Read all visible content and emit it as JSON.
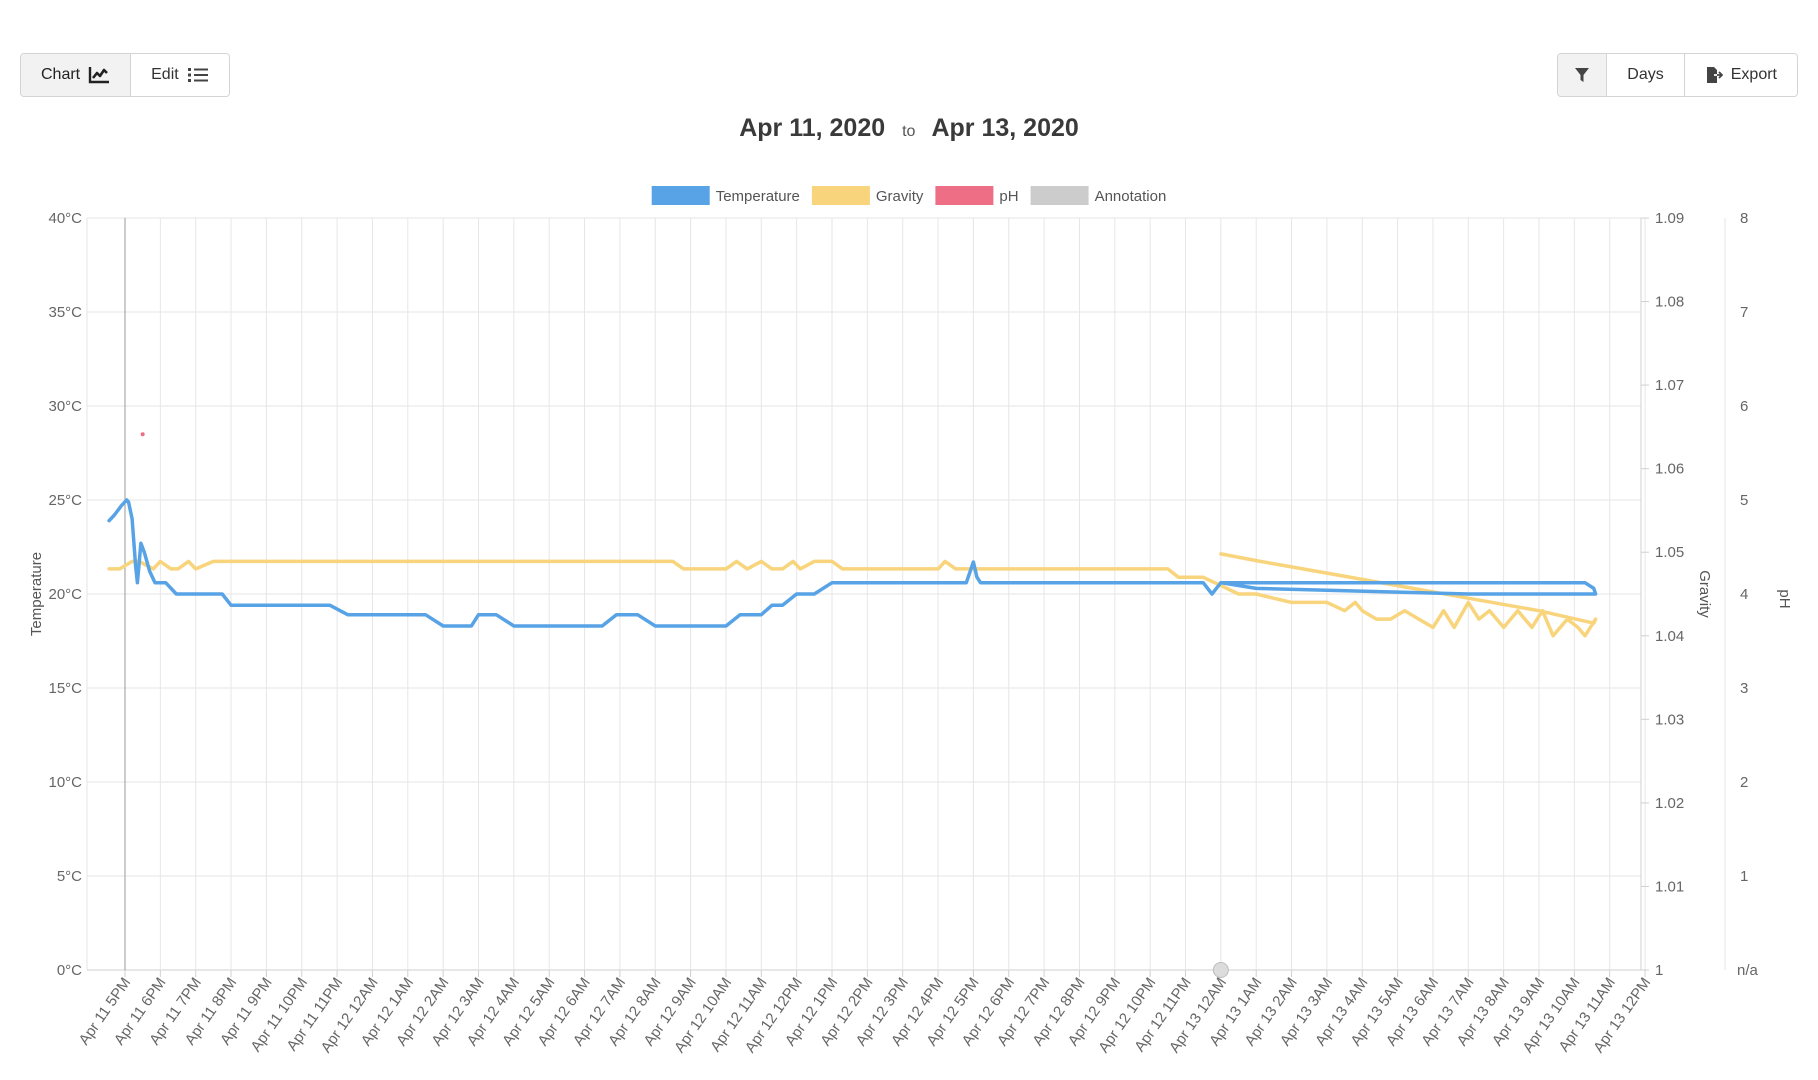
{
  "toolbar": {
    "chart_label": "Chart",
    "edit_label": "Edit",
    "days_label": "Days",
    "export_label": "Export",
    "icons": [
      "chart-line-icon",
      "list-icon",
      "filter-icon",
      "export-file-icon"
    ]
  },
  "date_range": {
    "start": "Apr 11, 2020",
    "to_label": "to",
    "end": "Apr 13, 2020"
  },
  "chart_data": {
    "type": "line",
    "legend": {
      "placement": "top-center",
      "entries": [
        {
          "name": "Temperature",
          "color": "#57a3e5"
        },
        {
          "name": "Gravity",
          "color": "#f8d47c"
        },
        {
          "name": "pH",
          "color": "#ee6e85"
        },
        {
          "name": "Annotation",
          "color": "#cccccc"
        }
      ]
    },
    "x_ticks": [
      "Apr 11 5PM",
      "Apr 11 6PM",
      "Apr 11 7PM",
      "Apr 11 8PM",
      "Apr 11 9PM",
      "Apr 11 10PM",
      "Apr 11 11PM",
      "Apr 12 12AM",
      "Apr 12 1AM",
      "Apr 12 2AM",
      "Apr 12 3AM",
      "Apr 12 4AM",
      "Apr 12 5AM",
      "Apr 12 6AM",
      "Apr 12 7AM",
      "Apr 12 8AM",
      "Apr 12 9AM",
      "Apr 12 10AM",
      "Apr 12 11AM",
      "Apr 12 12PM",
      "Apr 12 1PM",
      "Apr 12 2PM",
      "Apr 12 3PM",
      "Apr 12 4PM",
      "Apr 12 5PM",
      "Apr 12 6PM",
      "Apr 12 7PM",
      "Apr 12 8PM",
      "Apr 12 9PM",
      "Apr 12 10PM",
      "Apr 12 11PM",
      "Apr 13 12AM",
      "Apr 13 1AM",
      "Apr 13 2AM",
      "Apr 13 3AM",
      "Apr 13 4AM",
      "Apr 13 5AM",
      "Apr 13 6AM",
      "Apr 13 7AM",
      "Apr 13 8AM",
      "Apr 13 9AM",
      "Apr 13 10AM",
      "Apr 13 11AM",
      "Apr 13 12PM"
    ],
    "y_left": {
      "label": "Temperature",
      "ticks": [
        "0°C",
        "5°C",
        "10°C",
        "15°C",
        "20°C",
        "25°C",
        "30°C",
        "35°C",
        "40°C"
      ],
      "range": [
        0,
        40
      ]
    },
    "y_right_gravity": {
      "label": "Gravity",
      "ticks": [
        "1",
        "1.01",
        "1.02",
        "1.03",
        "1.04",
        "1.05",
        "1.06",
        "1.07",
        "1.08",
        "1.09"
      ],
      "range": [
        1,
        1.09
      ]
    },
    "y_right_ph": {
      "label": "pH",
      "ticks": [
        "n/a",
        "1",
        "2",
        "3",
        "4",
        "5",
        "6",
        "7",
        "8"
      ],
      "range": [
        0,
        8
      ]
    },
    "grid": true,
    "series": [
      {
        "name": "Temperature",
        "color": "#57a3e5",
        "x": [
          -0.45,
          -0.3,
          -0.1,
          0.05,
          0.1,
          0.2,
          0.3,
          0.35,
          0.45,
          0.55,
          0.7,
          0.85,
          1.15,
          1.45,
          1.75,
          2.2,
          2.5,
          2.75,
          3.0,
          3.25,
          3.8,
          4.0,
          4.3,
          5.0,
          5.5,
          5.8,
          6.3,
          7.0,
          7.5,
          8.0,
          8.5,
          9.0,
          9.2,
          9.5,
          9.8,
          10.0,
          10.2,
          10.5,
          11.0,
          11.5,
          12.0,
          12.5,
          13.0,
          13.2,
          13.5,
          13.9,
          14.2,
          14.5,
          15.0,
          15.5,
          16.0,
          16.4,
          16.6,
          17.0,
          17.4,
          17.6,
          18.0,
          18.3,
          18.6,
          19.0,
          19.5,
          20.0,
          20.5,
          21.0,
          22.0,
          23.0,
          23.8,
          24.0,
          24.1,
          24.2,
          24.4,
          25.0,
          26.0,
          27.0,
          28.0,
          29.0,
          30.0,
          30.5,
          30.75,
          31.0,
          32.0,
          34.0,
          36.0,
          38.0,
          40.0,
          41.3,
          41.55,
          41.6,
          41.58,
          40.0,
          38.0,
          36.0,
          34.0,
          32.0,
          31.0
        ],
        "values": [
          23.9,
          24.2,
          24.7,
          25.0,
          24.9,
          24.0,
          21.5,
          20.6,
          22.7,
          22.2,
          21.2,
          20.6,
          20.6,
          20.0,
          20.0,
          20.0,
          20.0,
          20.0,
          19.4,
          19.4,
          19.4,
          19.4,
          19.4,
          19.4,
          19.4,
          19.4,
          18.9,
          18.9,
          18.9,
          18.9,
          18.9,
          18.3,
          18.3,
          18.3,
          18.3,
          18.9,
          18.9,
          18.9,
          18.3,
          18.3,
          18.3,
          18.3,
          18.3,
          18.3,
          18.3,
          18.9,
          18.9,
          18.9,
          18.3,
          18.3,
          18.3,
          18.3,
          18.3,
          18.3,
          18.9,
          18.9,
          18.9,
          19.4,
          19.4,
          20.0,
          20.0,
          20.6,
          20.6,
          20.6,
          20.6,
          20.6,
          20.6,
          21.7,
          20.9,
          20.6,
          20.6,
          20.6,
          20.6,
          20.6,
          20.6,
          20.6,
          20.6,
          20.6,
          20.0,
          20.6,
          20.6,
          20.6,
          20.6,
          20.6,
          20.6,
          20.6,
          20.3,
          20.0,
          20.0,
          20.0,
          20.0,
          20.1,
          20.2,
          20.3,
          20.6
        ]
      },
      {
        "name": "Gravity",
        "color": "#f8d47c",
        "x": [
          -0.45,
          -0.15,
          0.2,
          0.4,
          0.8,
          1.0,
          1.3,
          1.5,
          1.8,
          2.0,
          2.5,
          3.0,
          5.0,
          8.0,
          11.0,
          14.0,
          15.5,
          15.8,
          16.0,
          16.5,
          17.0,
          17.3,
          17.6,
          18.0,
          18.3,
          18.6,
          18.9,
          19.1,
          19.5,
          20.0,
          20.3,
          20.5,
          21.0,
          22.5,
          23.0,
          23.2,
          23.5,
          24.5,
          25.5,
          26.5,
          28.0,
          29.5,
          29.8,
          30.1,
          30.5,
          31.0,
          31.5,
          32.0,
          33.0,
          34.0,
          34.5,
          34.8,
          35.0,
          35.4,
          35.8,
          36.2,
          36.6,
          37.0,
          37.3,
          37.6,
          38.0,
          38.3,
          38.6,
          39.0,
          39.4,
          39.8,
          40.1,
          40.4,
          40.8,
          41.1,
          41.3,
          41.6,
          41.55,
          40.0,
          38.0,
          36.0,
          34.0,
          32.0,
          31.0
        ],
        "values": [
          1.048,
          1.048,
          1.0489,
          1.0489,
          1.048,
          1.0489,
          1.048,
          1.048,
          1.0489,
          1.048,
          1.0489,
          1.0489,
          1.0489,
          1.0489,
          1.0489,
          1.0489,
          1.0489,
          1.048,
          1.048,
          1.048,
          1.048,
          1.0489,
          1.048,
          1.0489,
          1.048,
          1.048,
          1.0489,
          1.048,
          1.0489,
          1.0489,
          1.048,
          1.048,
          1.048,
          1.048,
          1.048,
          1.0489,
          1.048,
          1.048,
          1.048,
          1.048,
          1.048,
          1.048,
          1.047,
          1.047,
          1.047,
          1.046,
          1.045,
          1.045,
          1.044,
          1.044,
          1.043,
          1.044,
          1.043,
          1.042,
          1.042,
          1.043,
          1.042,
          1.041,
          1.043,
          1.041,
          1.044,
          1.042,
          1.043,
          1.041,
          1.043,
          1.041,
          1.043,
          1.04,
          1.042,
          1.041,
          1.04,
          1.042,
          1.0415,
          1.043,
          1.0445,
          1.046,
          1.0475,
          1.049,
          1.0498
        ]
      },
      {
        "name": "pH",
        "color": "#ee6e85",
        "x": [
          0.5
        ],
        "values": [
          5.7
        ]
      }
    ],
    "annotation_marker": {
      "x": 31.0,
      "y": 0
    },
    "vertical_marker": {
      "x": 0.0
    }
  }
}
